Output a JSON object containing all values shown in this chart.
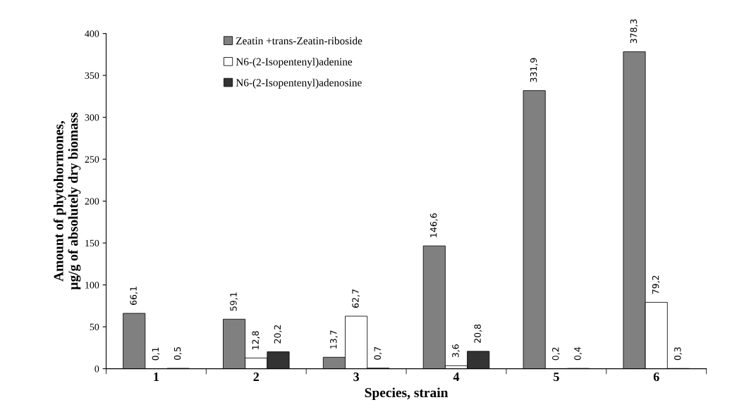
{
  "chart_data": {
    "type": "bar",
    "xlabel": "Species, strain",
    "ylabel": "Amount of phytohormones,\nµg/g of absolutely dry biomass",
    "categories": [
      "1",
      "2",
      "3",
      "4",
      "5",
      "6"
    ],
    "series": [
      {
        "name": "Zeatin +trans-Zeatin-riboside",
        "color": "#808080",
        "values": [
          66.1,
          59.1,
          13.7,
          146.6,
          331.9,
          378.3
        ],
        "value_labels": [
          "66,1",
          "59,1",
          "13,7",
          "146,6",
          "331,9",
          "378,3"
        ]
      },
      {
        "name": "N6-(2-Isopentenyl)adenine",
        "color": "#ffffff",
        "values": [
          0.1,
          12.8,
          62.7,
          3.6,
          0.2,
          79.2
        ],
        "value_labels": [
          "0,1",
          "12,8",
          "62,7",
          "3,6",
          "0,2",
          "79,2"
        ]
      },
      {
        "name": "N6-(2-Isopentenyl)adenosine",
        "color": "#333333",
        "values": [
          0.5,
          20.2,
          0.7,
          20.8,
          0.4,
          0.3
        ],
        "value_labels": [
          "0,5",
          "20,2",
          "0,7",
          "20,8",
          "0,4",
          "0,3"
        ]
      }
    ],
    "ylim": [
      0,
      400
    ],
    "yticks": [
      0,
      50,
      100,
      150,
      200,
      250,
      300,
      350,
      400
    ],
    "grid": false,
    "legend": "top left"
  }
}
